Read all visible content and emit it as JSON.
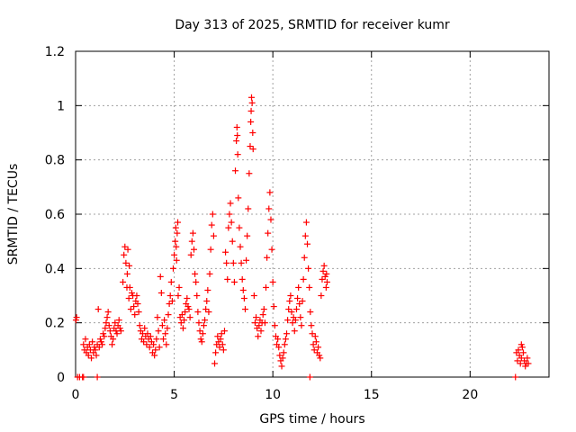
{
  "chart_data": {
    "type": "scatter",
    "title": "Day 313 of 2025, SRMTID for receiver kumr",
    "xlabel": "GPS time / hours",
    "ylabel": "SRMTID / TECUs",
    "xlim": [
      0,
      24
    ],
    "ylim": [
      0,
      1.2
    ],
    "xticks": [
      0,
      5,
      10,
      15,
      20
    ],
    "xtick_labels": [
      "0",
      "5",
      "10",
      "15",
      "20"
    ],
    "yticks": [
      0,
      0.2,
      0.4,
      0.6,
      0.8,
      1.0,
      1.2
    ],
    "ytick_labels": [
      "0",
      "0.2",
      "0.4",
      "0.6",
      "0.8",
      "1",
      "1.2"
    ],
    "grid": true,
    "marker": "+",
    "series": [
      {
        "name": "SRMTID",
        "color": "#ff0000",
        "points": [
          [
            0.02,
            0.21
          ],
          [
            0.05,
            0.22
          ],
          [
            0.1,
            0.0
          ],
          [
            0.2,
            0.0
          ],
          [
            0.35,
            0.0
          ],
          [
            0.4,
            0.0
          ],
          [
            1.1,
            0.0
          ],
          [
            0.4,
            0.12
          ],
          [
            0.45,
            0.1
          ],
          [
            0.5,
            0.14
          ],
          [
            0.55,
            0.09
          ],
          [
            0.6,
            0.11
          ],
          [
            0.65,
            0.08
          ],
          [
            0.7,
            0.12
          ],
          [
            0.75,
            0.1
          ],
          [
            0.8,
            0.07
          ],
          [
            0.85,
            0.13
          ],
          [
            0.9,
            0.09
          ],
          [
            0.95,
            0.11
          ],
          [
            1.0,
            0.1
          ],
          [
            1.05,
            0.08
          ],
          [
            1.1,
            0.12
          ],
          [
            1.15,
            0.25
          ],
          [
            1.2,
            0.11
          ],
          [
            1.25,
            0.14
          ],
          [
            1.3,
            0.13
          ],
          [
            1.35,
            0.12
          ],
          [
            1.4,
            0.16
          ],
          [
            1.45,
            0.15
          ],
          [
            1.5,
            0.18
          ],
          [
            1.55,
            0.2
          ],
          [
            1.6,
            0.22
          ],
          [
            1.65,
            0.24
          ],
          [
            1.7,
            0.19
          ],
          [
            1.75,
            0.17
          ],
          [
            1.8,
            0.15
          ],
          [
            1.85,
            0.12
          ],
          [
            1.9,
            0.14
          ],
          [
            1.95,
            0.18
          ],
          [
            2.0,
            0.2
          ],
          [
            2.05,
            0.17
          ],
          [
            2.1,
            0.16
          ],
          [
            2.15,
            0.19
          ],
          [
            2.2,
            0.21
          ],
          [
            2.25,
            0.18
          ],
          [
            2.3,
            0.17
          ],
          [
            2.4,
            0.35
          ],
          [
            2.45,
            0.45
          ],
          [
            2.5,
            0.48
          ],
          [
            2.55,
            0.42
          ],
          [
            2.6,
            0.33
          ],
          [
            2.62,
            0.38
          ],
          [
            2.65,
            0.47
          ],
          [
            2.7,
            0.29
          ],
          [
            2.72,
            0.41
          ],
          [
            2.75,
            0.33
          ],
          [
            2.8,
            0.25
          ],
          [
            2.85,
            0.31
          ],
          [
            2.9,
            0.3
          ],
          [
            2.95,
            0.26
          ],
          [
            3.0,
            0.23
          ],
          [
            3.05,
            0.28
          ],
          [
            3.1,
            0.3
          ],
          [
            3.15,
            0.27
          ],
          [
            3.2,
            0.24
          ],
          [
            3.25,
            0.19
          ],
          [
            3.3,
            0.17
          ],
          [
            3.35,
            0.14
          ],
          [
            3.4,
            0.16
          ],
          [
            3.45,
            0.13
          ],
          [
            3.5,
            0.18
          ],
          [
            3.55,
            0.15
          ],
          [
            3.6,
            0.12
          ],
          [
            3.65,
            0.16
          ],
          [
            3.7,
            0.14
          ],
          [
            3.75,
            0.11
          ],
          [
            3.8,
            0.15
          ],
          [
            3.85,
            0.13
          ],
          [
            3.9,
            0.09
          ],
          [
            3.95,
            0.12
          ],
          [
            4.0,
            0.08
          ],
          [
            4.05,
            0.1
          ],
          [
            4.1,
            0.14
          ],
          [
            4.15,
            0.22
          ],
          [
            4.2,
            0.17
          ],
          [
            4.25,
            0.11
          ],
          [
            4.3,
            0.37
          ],
          [
            4.35,
            0.31
          ],
          [
            4.4,
            0.19
          ],
          [
            4.45,
            0.14
          ],
          [
            4.5,
            0.21
          ],
          [
            4.55,
            0.16
          ],
          [
            4.6,
            0.12
          ],
          [
            4.65,
            0.18
          ],
          [
            4.7,
            0.23
          ],
          [
            4.75,
            0.27
          ],
          [
            4.8,
            0.3
          ],
          [
            4.85,
            0.35
          ],
          [
            4.9,
            0.28
          ],
          [
            4.95,
            0.4
          ],
          [
            5.0,
            0.45
          ],
          [
            5.05,
            0.5
          ],
          [
            5.08,
            0.55
          ],
          [
            5.1,
            0.48
          ],
          [
            5.12,
            0.43
          ],
          [
            5.15,
            0.53
          ],
          [
            5.18,
            0.57
          ],
          [
            5.2,
            0.3
          ],
          [
            5.25,
            0.33
          ],
          [
            5.3,
            0.22
          ],
          [
            5.35,
            0.2
          ],
          [
            5.4,
            0.23
          ],
          [
            5.45,
            0.18
          ],
          [
            5.5,
            0.21
          ],
          [
            5.55,
            0.24
          ],
          [
            5.6,
            0.27
          ],
          [
            5.65,
            0.29
          ],
          [
            5.7,
            0.26
          ],
          [
            5.75,
            0.25
          ],
          [
            5.8,
            0.22
          ],
          [
            5.85,
            0.45
          ],
          [
            5.9,
            0.5
          ],
          [
            5.95,
            0.53
          ],
          [
            6.0,
            0.47
          ],
          [
            6.05,
            0.38
          ],
          [
            6.1,
            0.35
          ],
          [
            6.15,
            0.3
          ],
          [
            6.2,
            0.24
          ],
          [
            6.25,
            0.2
          ],
          [
            6.3,
            0.17
          ],
          [
            6.35,
            0.14
          ],
          [
            6.4,
            0.13
          ],
          [
            6.45,
            0.16
          ],
          [
            6.5,
            0.19
          ],
          [
            6.55,
            0.21
          ],
          [
            6.6,
            0.25
          ],
          [
            6.65,
            0.28
          ],
          [
            6.7,
            0.32
          ],
          [
            6.75,
            0.24
          ],
          [
            6.8,
            0.38
          ],
          [
            6.85,
            0.47
          ],
          [
            6.9,
            0.56
          ],
          [
            6.95,
            0.6
          ],
          [
            7.0,
            0.52
          ],
          [
            7.05,
            0.05
          ],
          [
            7.1,
            0.09
          ],
          [
            7.15,
            0.12
          ],
          [
            7.2,
            0.15
          ],
          [
            7.25,
            0.13
          ],
          [
            7.3,
            0.11
          ],
          [
            7.35,
            0.14
          ],
          [
            7.4,
            0.16
          ],
          [
            7.45,
            0.12
          ],
          [
            7.5,
            0.1
          ],
          [
            7.55,
            0.17
          ],
          [
            7.6,
            0.46
          ],
          [
            7.65,
            0.42
          ],
          [
            7.7,
            0.36
          ],
          [
            7.75,
            0.55
          ],
          [
            7.8,
            0.6
          ],
          [
            7.85,
            0.64
          ],
          [
            7.9,
            0.57
          ],
          [
            7.95,
            0.5
          ],
          [
            8.0,
            0.42
          ],
          [
            8.05,
            0.35
          ],
          [
            8.1,
            0.76
          ],
          [
            8.15,
            0.87
          ],
          [
            8.18,
            0.92
          ],
          [
            8.2,
            0.89
          ],
          [
            8.22,
            0.82
          ],
          [
            8.25,
            0.66
          ],
          [
            8.3,
            0.55
          ],
          [
            8.35,
            0.48
          ],
          [
            8.4,
            0.42
          ],
          [
            8.45,
            0.36
          ],
          [
            8.5,
            0.32
          ],
          [
            8.55,
            0.29
          ],
          [
            8.6,
            0.25
          ],
          [
            8.65,
            0.43
          ],
          [
            8.7,
            0.52
          ],
          [
            8.75,
            0.62
          ],
          [
            8.8,
            0.75
          ],
          [
            8.85,
            0.85
          ],
          [
            8.88,
            0.94
          ],
          [
            8.9,
            0.98
          ],
          [
            8.92,
            1.03
          ],
          [
            8.95,
            1.01
          ],
          [
            8.98,
            0.9
          ],
          [
            9.0,
            0.84
          ],
          [
            9.05,
            0.3
          ],
          [
            9.1,
            0.2
          ],
          [
            9.15,
            0.22
          ],
          [
            9.2,
            0.18
          ],
          [
            9.25,
            0.15
          ],
          [
            9.3,
            0.19
          ],
          [
            9.35,
            0.21
          ],
          [
            9.4,
            0.17
          ],
          [
            9.45,
            0.2
          ],
          [
            9.5,
            0.23
          ],
          [
            9.55,
            0.25
          ],
          [
            9.6,
            0.2
          ],
          [
            9.65,
            0.33
          ],
          [
            9.7,
            0.44
          ],
          [
            9.75,
            0.53
          ],
          [
            9.8,
            0.62
          ],
          [
            9.85,
            0.68
          ],
          [
            9.9,
            0.58
          ],
          [
            9.95,
            0.47
          ],
          [
            10.0,
            0.35
          ],
          [
            10.05,
            0.26
          ],
          [
            10.1,
            0.19
          ],
          [
            10.15,
            0.15
          ],
          [
            10.2,
            0.12
          ],
          [
            10.25,
            0.14
          ],
          [
            10.3,
            0.11
          ],
          [
            10.35,
            0.08
          ],
          [
            10.4,
            0.06
          ],
          [
            10.45,
            0.04
          ],
          [
            10.5,
            0.07
          ],
          [
            10.55,
            0.09
          ],
          [
            10.6,
            0.12
          ],
          [
            10.65,
            0.14
          ],
          [
            10.7,
            0.16
          ],
          [
            10.75,
            0.21
          ],
          [
            10.8,
            0.25
          ],
          [
            10.85,
            0.28
          ],
          [
            10.9,
            0.3
          ],
          [
            10.95,
            0.24
          ],
          [
            11.0,
            0.2
          ],
          [
            11.05,
            0.22
          ],
          [
            11.1,
            0.17
          ],
          [
            11.15,
            0.21
          ],
          [
            11.2,
            0.25
          ],
          [
            11.25,
            0.29
          ],
          [
            11.3,
            0.33
          ],
          [
            11.35,
            0.27
          ],
          [
            11.4,
            0.22
          ],
          [
            11.45,
            0.19
          ],
          [
            11.5,
            0.28
          ],
          [
            11.55,
            0.36
          ],
          [
            11.6,
            0.44
          ],
          [
            11.65,
            0.52
          ],
          [
            11.7,
            0.57
          ],
          [
            11.75,
            0.49
          ],
          [
            11.8,
            0.4
          ],
          [
            11.85,
            0.33
          ],
          [
            11.88,
            0.0
          ],
          [
            11.9,
            0.24
          ],
          [
            11.95,
            0.19
          ],
          [
            12.0,
            0.16
          ],
          [
            12.05,
            0.12
          ],
          [
            12.1,
            0.1
          ],
          [
            12.15,
            0.15
          ],
          [
            12.2,
            0.13
          ],
          [
            12.25,
            0.09
          ],
          [
            12.3,
            0.11
          ],
          [
            12.35,
            0.08
          ],
          [
            12.4,
            0.07
          ],
          [
            12.45,
            0.3
          ],
          [
            12.5,
            0.36
          ],
          [
            12.55,
            0.39
          ],
          [
            12.6,
            0.41
          ],
          [
            12.65,
            0.37
          ],
          [
            12.7,
            0.33
          ],
          [
            12.72,
            0.38
          ],
          [
            12.75,
            0.35
          ],
          [
            22.3,
            0.0
          ],
          [
            22.35,
            0.09
          ],
          [
            22.4,
            0.06
          ],
          [
            22.45,
            0.1
          ],
          [
            22.5,
            0.08
          ],
          [
            22.55,
            0.05
          ],
          [
            22.6,
            0.07
          ],
          [
            22.65,
            0.11
          ],
          [
            22.7,
            0.09
          ],
          [
            22.75,
            0.06
          ],
          [
            22.8,
            0.04
          ],
          [
            22.85,
            0.05
          ],
          [
            22.9,
            0.07
          ],
          [
            22.95,
            0.05
          ],
          [
            22.6,
            0.12
          ]
        ]
      }
    ]
  }
}
